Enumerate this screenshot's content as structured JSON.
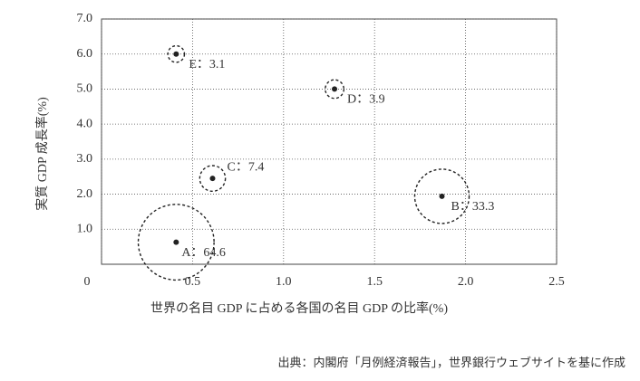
{
  "chart_data": {
    "type": "bubble",
    "x_label": "世界の名目 GDP に占める各国の名目 GDP の比率(%)",
    "y_label": "実質 GDP 成長率(%)",
    "source": "出典：内閣府「月例経済報告」，世界銀行ウェブサイトを基に作成",
    "x": [
      0.41,
      1.87,
      0.61,
      1.28,
      0.41
    ],
    "values": [
      0.63,
      1.94,
      2.45,
      5.0,
      6.0
    ],
    "sizes": [
      64.6,
      33.3,
      7.4,
      3.9,
      3.1
    ],
    "size_labels": [
      "A：64.6",
      "B：33.3",
      "C：7.4",
      "D：3.9",
      "E：3.1"
    ],
    "color": "#222222",
    "xlim": [
      0,
      2.5
    ],
    "xticks": [
      0,
      0.5,
      {
        "value": 1,
        "label": "1.0"
      },
      1.5,
      {
        "value": 2,
        "label": "2.0"
      },
      2.5
    ],
    "ylim": [
      0,
      7
    ],
    "yticks": [
      {
        "value": 1,
        "label": "1.0"
      },
      {
        "value": 2,
        "label": "2.0"
      },
      {
        "value": 3,
        "label": "3.0"
      },
      {
        "value": 4,
        "label": "4.0"
      },
      {
        "value": 5,
        "label": "5.0"
      },
      {
        "value": 6,
        "label": "6.0"
      },
      {
        "value": 7,
        "label": "7.0"
      }
    ],
    "grid": true
  }
}
